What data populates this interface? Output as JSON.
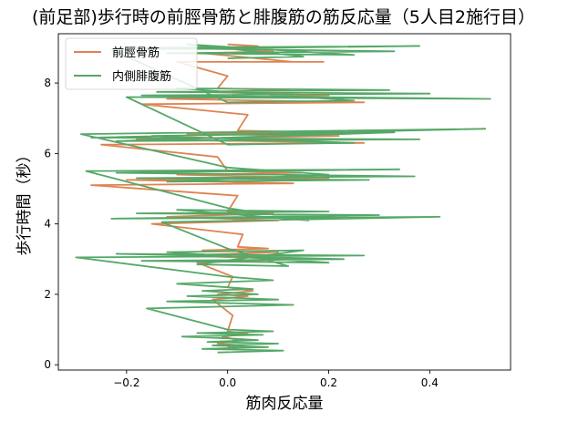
{
  "chart_data": {
    "type": "line",
    "title": "(前足部)歩行時の前脛骨筋と腓腹筋の筋反応量（5人目2施行目）",
    "xlabel": "筋肉反応量",
    "ylabel": "歩行時間（秒）",
    "xlim": [
      -0.335,
      0.56
    ],
    "ylim": [
      -0.15,
      9.4
    ],
    "xticks": [
      -0.2,
      0.0,
      0.2,
      0.4
    ],
    "xtick_labels": [
      "−0.2",
      "0.0",
      "0.2",
      "0.4"
    ],
    "yticks": [
      0,
      2,
      4,
      6,
      8
    ],
    "ytick_labels": [
      "0",
      "2",
      "4",
      "6",
      "8"
    ],
    "grid": false,
    "legend_position": "top-left",
    "series": [
      {
        "name": "前脛骨筋",
        "color": "#dd8452",
        "points": [
          [
            0.0,
            0.5
          ],
          [
            0.03,
            0.55
          ],
          [
            -0.02,
            0.6
          ],
          [
            0.02,
            0.7
          ],
          [
            -0.01,
            0.8
          ],
          [
            0.04,
            0.88
          ],
          [
            0.0,
            0.95
          ],
          [
            0.01,
            1.4
          ],
          [
            -0.03,
            1.85
          ],
          [
            0.04,
            1.95
          ],
          [
            -0.02,
            2.0
          ],
          [
            0.05,
            2.1
          ],
          [
            0.0,
            2.2
          ],
          [
            0.01,
            2.5
          ],
          [
            -0.06,
            2.9
          ],
          [
            0.13,
            3.0
          ],
          [
            -0.09,
            3.1
          ],
          [
            0.1,
            3.2
          ],
          [
            -0.05,
            3.25
          ],
          [
            0.08,
            3.3
          ],
          [
            0.02,
            3.35
          ],
          [
            0.03,
            3.7
          ],
          [
            -0.15,
            4.0
          ],
          [
            0.1,
            4.1
          ],
          [
            -0.12,
            4.2
          ],
          [
            0.09,
            4.3
          ],
          [
            0.0,
            4.35
          ],
          [
            0.02,
            4.8
          ],
          [
            -0.27,
            5.1
          ],
          [
            0.13,
            5.15
          ],
          [
            -0.2,
            5.25
          ],
          [
            0.2,
            5.3
          ],
          [
            -0.1,
            5.4
          ],
          [
            0.15,
            5.45
          ],
          [
            0.0,
            5.5
          ],
          [
            -0.02,
            5.9
          ],
          [
            -0.25,
            6.25
          ],
          [
            0.27,
            6.3
          ],
          [
            -0.18,
            6.4
          ],
          [
            0.22,
            6.5
          ],
          [
            -0.08,
            6.55
          ],
          [
            0.18,
            6.6
          ],
          [
            0.02,
            6.65
          ],
          [
            0.04,
            7.1
          ],
          [
            -0.17,
            7.4
          ],
          [
            0.27,
            7.45
          ],
          [
            -0.12,
            7.55
          ],
          [
            0.2,
            7.65
          ],
          [
            -0.05,
            7.75
          ],
          [
            0.12,
            7.8
          ],
          [
            -0.02,
            7.85
          ],
          [
            0.0,
            8.2
          ],
          [
            -0.1,
            8.6
          ],
          [
            0.19,
            8.6
          ],
          [
            0.13,
            8.6
          ],
          [
            -0.05,
            8.85
          ],
          [
            0.09,
            8.9
          ],
          [
            -0.03,
            9.0
          ],
          [
            0.06,
            9.05
          ],
          [
            0.0,
            9.1
          ]
        ]
      },
      {
        "name": "内側腓腹筋",
        "color": "#55a868",
        "points": [
          [
            -0.02,
            0.35
          ],
          [
            0.11,
            0.4
          ],
          [
            -0.05,
            0.45
          ],
          [
            0.08,
            0.5
          ],
          [
            -0.03,
            0.55
          ],
          [
            0.1,
            0.6
          ],
          [
            -0.04,
            0.65
          ],
          [
            0.06,
            0.7
          ],
          [
            0.0,
            0.75
          ],
          [
            -0.09,
            0.8
          ],
          [
            0.07,
            0.85
          ],
          [
            -0.06,
            0.9
          ],
          [
            0.09,
            0.95
          ],
          [
            0.0,
            1.0
          ],
          [
            -0.16,
            1.6
          ],
          [
            0.13,
            1.7
          ],
          [
            -0.12,
            1.8
          ],
          [
            0.1,
            1.85
          ],
          [
            -0.08,
            1.95
          ],
          [
            0.06,
            2.0
          ],
          [
            -0.05,
            2.1
          ],
          [
            0.05,
            2.15
          ],
          [
            -0.1,
            2.3
          ],
          [
            0.09,
            2.4
          ],
          [
            0.0,
            2.5
          ],
          [
            -0.3,
            3.05
          ],
          [
            0.27,
            3.1
          ],
          [
            -0.22,
            3.15
          ],
          [
            0.23,
            3.0
          ],
          [
            -0.17,
            2.95
          ],
          [
            0.2,
            2.9
          ],
          [
            -0.12,
            3.2
          ],
          [
            0.15,
            3.25
          ],
          [
            -0.06,
            2.85
          ],
          [
            0.12,
            2.8
          ],
          [
            0.0,
            3.3
          ],
          [
            -0.13,
            4.05
          ],
          [
            0.42,
            4.2
          ],
          [
            -0.23,
            4.15
          ],
          [
            0.3,
            4.25
          ],
          [
            -0.18,
            4.3
          ],
          [
            0.2,
            4.35
          ],
          [
            -0.1,
            4.4
          ],
          [
            0.16,
            4.1
          ],
          [
            0.0,
            4.45
          ],
          [
            -0.28,
            5.5
          ],
          [
            0.34,
            5.55
          ],
          [
            -0.22,
            5.45
          ],
          [
            0.37,
            5.35
          ],
          [
            -0.18,
            5.3
          ],
          [
            0.28,
            5.25
          ],
          [
            -0.12,
            5.2
          ],
          [
            0.2,
            5.4
          ],
          [
            0.0,
            5.6
          ],
          [
            -0.29,
            6.55
          ],
          [
            0.51,
            6.7
          ],
          [
            -0.27,
            6.45
          ],
          [
            0.38,
            6.4
          ],
          [
            -0.22,
            6.35
          ],
          [
            0.33,
            6.6
          ],
          [
            -0.15,
            6.5
          ],
          [
            0.25,
            6.3
          ],
          [
            0.0,
            6.25
          ],
          [
            -0.2,
            7.6
          ],
          [
            0.52,
            7.55
          ],
          [
            -0.17,
            7.65
          ],
          [
            0.4,
            7.7
          ],
          [
            -0.14,
            7.75
          ],
          [
            0.32,
            7.8
          ],
          [
            -0.1,
            7.85
          ],
          [
            0.25,
            7.5
          ],
          [
            0.0,
            7.45
          ],
          [
            -0.23,
            8.95
          ],
          [
            0.38,
            9.05
          ],
          [
            -0.18,
            9.0
          ],
          [
            0.33,
            8.9
          ],
          [
            -0.12,
            8.85
          ],
          [
            0.25,
            8.8
          ],
          [
            -0.08,
            9.1
          ],
          [
            0.15,
            8.75
          ],
          [
            0.0,
            8.7
          ]
        ]
      }
    ]
  }
}
